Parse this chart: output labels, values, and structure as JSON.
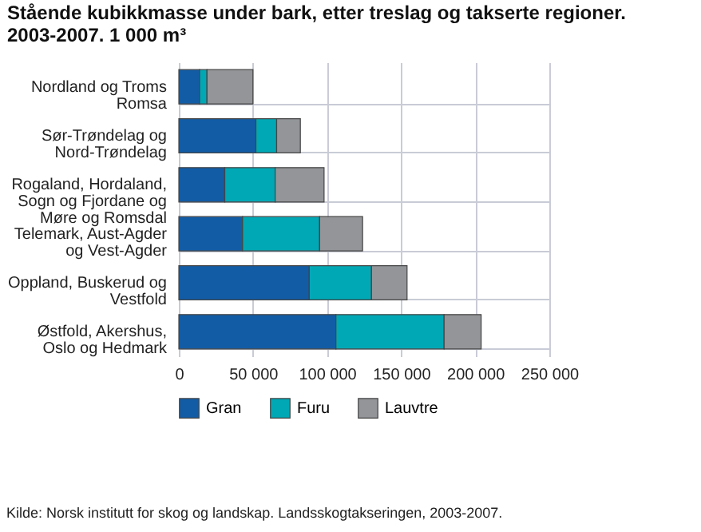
{
  "chart_data": {
    "type": "bar",
    "orientation": "horizontal",
    "stacked": true,
    "title": "Stående kubikkmasse under bark, etter treslag og takserte regioner. 2003-2007. 1 000 m³",
    "categories": [
      "Nordland og Troms Romsa",
      "Sør-Trøndelag og Nord-Trøndelag",
      "Rogaland, Hordaland, Sogn og Fjordane og Møre og Romsdal",
      "Telemark, Aust-Agder og Vest-Agder",
      "Oppland, Buskerud og Vestfold",
      "Østfold, Akershus, Oslo og Hedmark"
    ],
    "series": [
      {
        "name": "Gran",
        "color": "#125ca6",
        "values": [
          14000,
          52000,
          31000,
          43000,
          88000,
          106000
        ]
      },
      {
        "name": "Furu",
        "color": "#00a8b5",
        "values": [
          5000,
          14000,
          34000,
          52000,
          42000,
          73000
        ]
      },
      {
        "name": "Lauvtre",
        "color": "#939598",
        "values": [
          31000,
          16000,
          33000,
          29000,
          24000,
          25000
        ]
      }
    ],
    "xlim": [
      0,
      250000
    ],
    "xticks": [
      {
        "value": 0,
        "label": "0"
      },
      {
        "value": 50000,
        "label": "50 000"
      },
      {
        "value": 100000,
        "label": "100 000"
      },
      {
        "value": 150000,
        "label": "150 000"
      },
      {
        "value": 200000,
        "label": "200 000"
      },
      {
        "value": 250000,
        "label": "250 000"
      }
    ],
    "grid": true,
    "legend": "bottom",
    "annotations": [
      "Kilde: Norsk institutt for skog og landskap. Landsskogtakseringen, 2003-2007."
    ]
  }
}
